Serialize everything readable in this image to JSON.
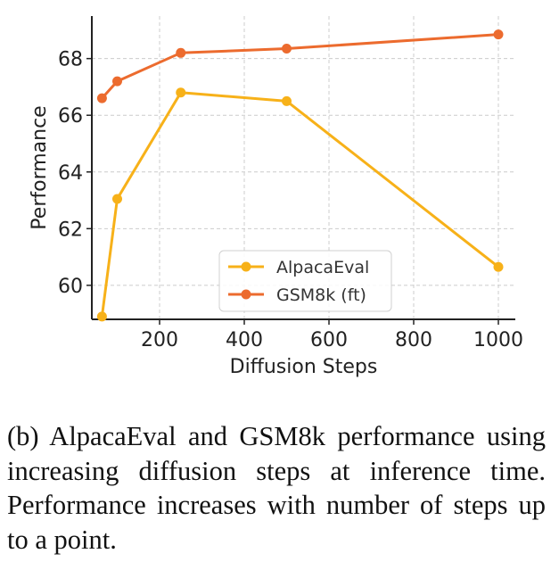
{
  "chart_data": {
    "type": "line",
    "xlabel": "Diffusion Steps",
    "ylabel": "Performance",
    "xlim": [
      40,
      1040
    ],
    "ylim": [
      58.8,
      69.5
    ],
    "xticks": [
      200,
      400,
      600,
      800,
      1000
    ],
    "yticks": [
      60,
      62,
      64,
      66,
      68
    ],
    "grid": true,
    "legend_position": "lower-right",
    "series": [
      {
        "name": "AlpacaEval",
        "color": "#F7B119",
        "x": [
          64,
          100,
          250,
          500,
          1000
        ],
        "y": [
          58.9,
          63.05,
          66.8,
          66.5,
          60.65
        ]
      },
      {
        "name": "GSM8k (ft)",
        "color": "#EC6B2E",
        "x": [
          64,
          100,
          250,
          500,
          1000
        ],
        "y": [
          66.6,
          67.2,
          68.2,
          68.35,
          68.85
        ]
      }
    ]
  },
  "caption": "(b) AlpacaEval and GSM8k performance using increasing diffusion steps at infer­ence time.  Performance increases with number of steps up to a point."
}
